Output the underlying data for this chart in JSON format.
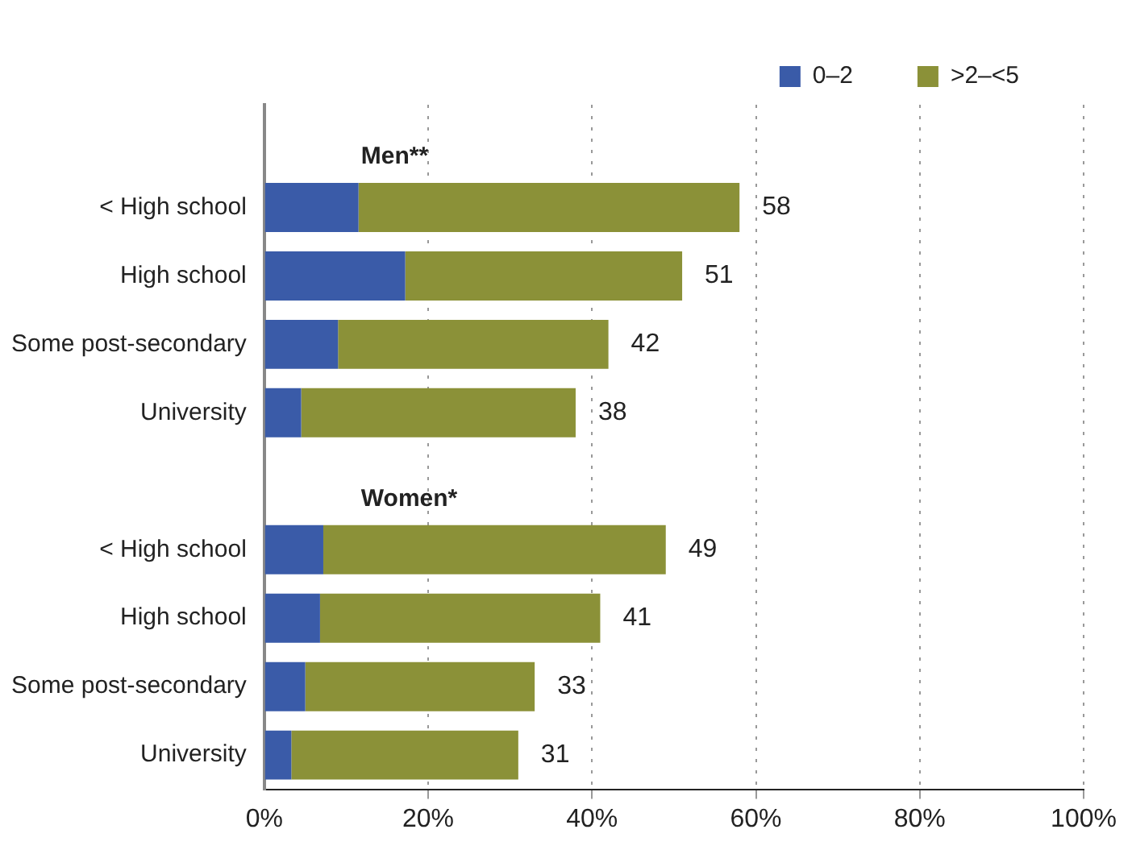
{
  "chart_data": {
    "type": "bar",
    "orientation": "horizontal",
    "stacked": true,
    "categories": [
      null,
      "< High school",
      "High school",
      "Some post-secondary",
      "University",
      null,
      "< High school",
      "High school",
      "Some post-secondary",
      "University"
    ],
    "series": [
      {
        "name": "0–2",
        "color": "#3a5ba8",
        "values": [
          null,
          11.5,
          17.2,
          9.0,
          4.5,
          null,
          7.2,
          6.8,
          5.0,
          3.3
        ]
      },
      {
        "name": ">2–<5",
        "color": "#8b9138",
        "values": [
          null,
          46.5,
          33.8,
          33.0,
          33.5,
          null,
          41.8,
          34.2,
          28.0,
          27.7
        ]
      }
    ],
    "totals": [
      null,
      "58",
      "51",
      "42",
      "38",
      null,
      "49",
      "41",
      "33",
      "31"
    ],
    "annotations": [
      "Men**",
      "Women*"
    ],
    "xlim": [
      0,
      100
    ],
    "xticks": [
      {
        "value": 0,
        "label": "0%"
      },
      {
        "value": 20,
        "label": "20%"
      },
      {
        "value": 40,
        "label": "40%"
      },
      {
        "value": 60,
        "label": "60%"
      },
      {
        "value": 80,
        "label": "80%"
      },
      {
        "value": 100,
        "label": "100%"
      }
    ],
    "grid": "x",
    "legend": "top"
  }
}
